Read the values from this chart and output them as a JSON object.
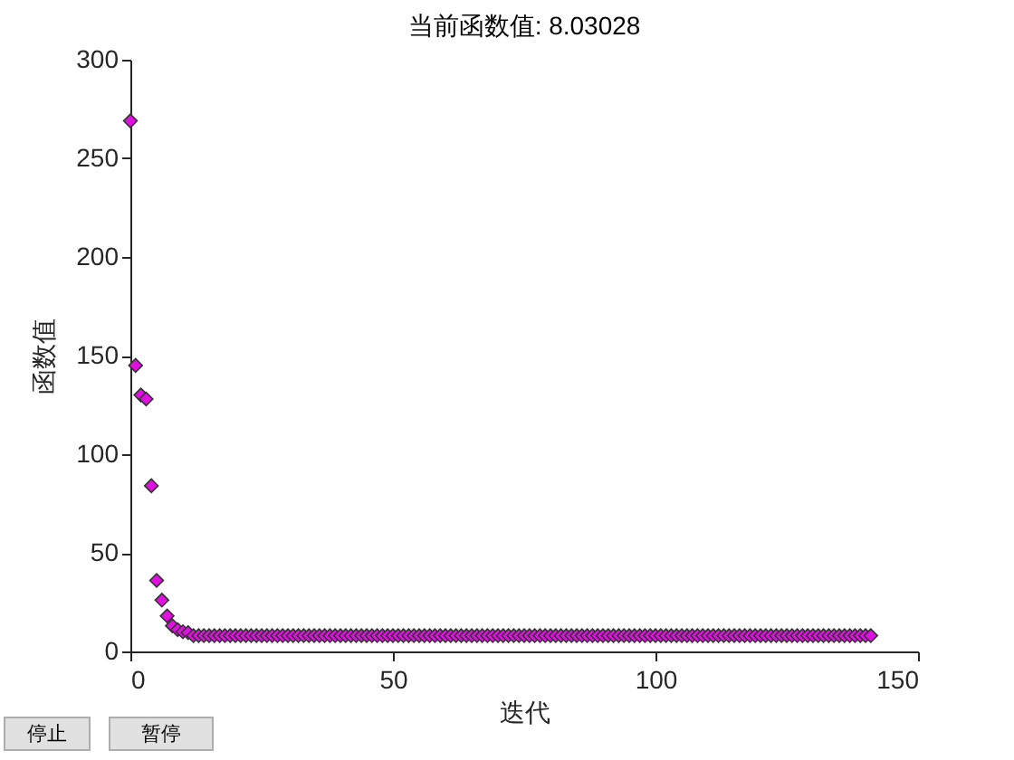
{
  "chart_data": {
    "type": "scatter",
    "title": "当前函数值: 8.03028",
    "xlabel": "迭代",
    "ylabel": "函数值",
    "x": [
      0,
      1,
      2,
      3,
      4,
      5,
      6,
      7,
      8,
      9,
      10,
      11,
      12,
      13,
      14,
      15,
      16,
      17,
      18,
      19,
      20,
      21,
      22,
      23,
      24,
      25,
      26,
      27,
      28,
      29,
      30,
      31,
      32,
      33,
      34,
      35,
      36,
      37,
      38,
      39,
      40,
      41,
      42,
      43,
      44,
      45,
      46,
      47,
      48,
      49,
      50,
      51,
      52,
      53,
      54,
      55,
      56,
      57,
      58,
      59,
      60,
      61,
      62,
      63,
      64,
      65,
      66,
      67,
      68,
      69,
      70,
      71,
      72,
      73,
      74,
      75,
      76,
      77,
      78,
      79,
      80,
      81,
      82,
      83,
      84,
      85,
      86,
      87,
      88,
      89,
      90,
      91,
      92,
      93,
      94,
      95,
      96,
      97,
      98,
      99,
      100,
      101,
      102,
      103,
      104,
      105,
      106,
      107,
      108,
      109,
      110,
      111,
      112,
      113,
      114,
      115,
      116,
      117,
      118,
      119,
      120,
      121,
      122,
      123,
      124,
      125,
      126,
      127,
      128,
      129,
      130,
      131,
      132,
      133,
      134,
      135,
      136,
      137,
      138,
      139,
      140,
      141
    ],
    "values": [
      269,
      145,
      130,
      128,
      84,
      36,
      26,
      18,
      13,
      11,
      10,
      9.5,
      8,
      8,
      8,
      8,
      8,
      8,
      8,
      8,
      8,
      8,
      8,
      8,
      8,
      8,
      8,
      8,
      8,
      8,
      8,
      8,
      8,
      8,
      8,
      8,
      8,
      8,
      8,
      8,
      8,
      8,
      8,
      8,
      8,
      8,
      8,
      8,
      8,
      8,
      8,
      8,
      8,
      8,
      8,
      8,
      8,
      8,
      8,
      8,
      8,
      8,
      8,
      8,
      8,
      8,
      8,
      8,
      8,
      8,
      8,
      8,
      8,
      8,
      8,
      8,
      8,
      8,
      8,
      8,
      8,
      8,
      8,
      8,
      8,
      8,
      8,
      8,
      8,
      8,
      8,
      8,
      8,
      8,
      8,
      8,
      8,
      8,
      8,
      8,
      8,
      8,
      8,
      8,
      8,
      8,
      8,
      8,
      8,
      8,
      8,
      8,
      8,
      8,
      8,
      8,
      8,
      8,
      8,
      8,
      8,
      8,
      8,
      8,
      8,
      8,
      8,
      8,
      8,
      8,
      8,
      8,
      8,
      8,
      8,
      8,
      8,
      8,
      8,
      8,
      8,
      8
    ],
    "color": "#e011e0",
    "marker": "diamond",
    "xlim": [
      0,
      150
    ],
    "xticks": [
      0,
      50,
      100,
      150
    ],
    "ylim": [
      0,
      300
    ],
    "yticks": [
      0,
      50,
      100,
      150,
      200,
      250,
      300
    ],
    "annotations": [
      "停止",
      "暂停"
    ]
  }
}
